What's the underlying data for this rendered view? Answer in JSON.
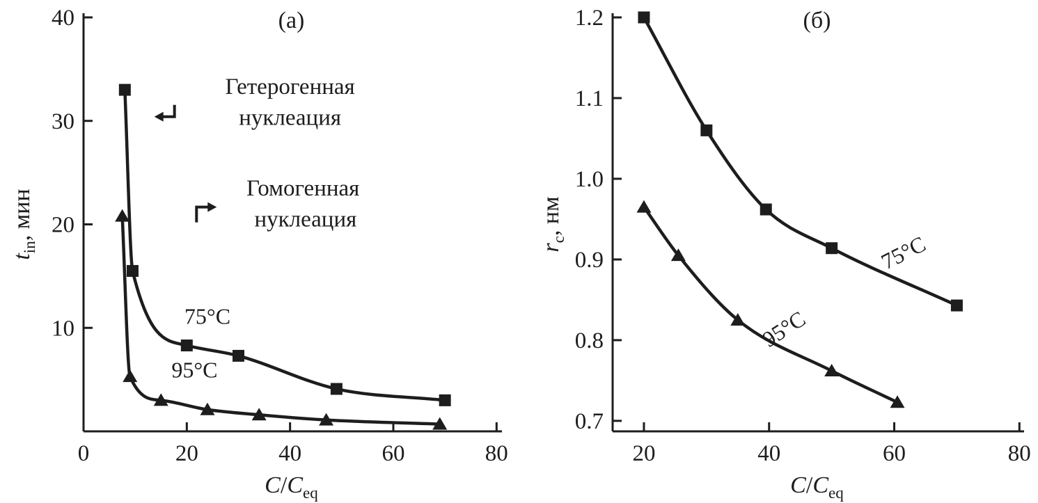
{
  "colors": {
    "ink": "#1d1d1d",
    "background": "#ffffff"
  },
  "chart_data": [
    {
      "type": "line",
      "panel_label": "(а)",
      "xlabel_parts": [
        {
          "t": "C",
          "i": true
        },
        {
          "t": "/"
        },
        {
          "t": "C",
          "i": true
        },
        {
          "t": "eq",
          "sub": true
        }
      ],
      "ylabel_parts": [
        {
          "t": "t",
          "i": true
        },
        {
          "t": "in",
          "sub": true
        },
        {
          "t": ", мин"
        }
      ],
      "xlim": [
        0,
        80.5
      ],
      "ylim": [
        0,
        40
      ],
      "grid": false,
      "xticks": [
        {
          "v": 0,
          "label": "0"
        },
        {
          "v": 20,
          "label": "20"
        },
        {
          "v": 40,
          "label": "40"
        },
        {
          "v": 60,
          "label": "60"
        },
        {
          "v": 80,
          "label": "80"
        }
      ],
      "yticks": [
        {
          "v": 10,
          "label": "10"
        },
        {
          "v": 20,
          "label": "20"
        },
        {
          "v": 30,
          "label": "30"
        },
        {
          "v": 40,
          "label": "40"
        }
      ],
      "series": [
        {
          "name": "heterogeneous-75C",
          "marker": "square",
          "label": "75°C",
          "label_pos": [
            24,
            10.4
          ],
          "label_rotation": 0,
          "points": [
            [
              8,
              33
            ],
            [
              9.5,
              15.5
            ],
            [
              20,
              8.3
            ],
            [
              30,
              7.3
            ],
            [
              49,
              4.1
            ],
            [
              70,
              3.0
            ]
          ]
        },
        {
          "name": "homogeneous-95C",
          "marker": "triangle",
          "label": "95°C",
          "label_pos": [
            21.5,
            5.2
          ],
          "label_rotation": 0,
          "points": [
            [
              7.5,
              20.8
            ],
            [
              9,
              5.3
            ],
            [
              15,
              3.0
            ],
            [
              24,
              2.1
            ],
            [
              34,
              1.6
            ],
            [
              47,
              1.1
            ],
            [
              69,
              0.7
            ]
          ]
        }
      ],
      "annotations": [
        {
          "arrow": "down-left",
          "arrow_pos": [
            16,
            30.4
          ],
          "lines": [
            {
              "text": "Гетерогенная",
              "pos": [
                40,
                32.6
              ]
            },
            {
              "text": "нуклеация",
              "pos": [
                40,
                29.6
              ]
            }
          ]
        },
        {
          "arrow": "up-right",
          "arrow_pos": [
            23.5,
            21.2
          ],
          "lines": [
            {
              "text": "Гомогенная",
              "pos": [
                42.5,
                22.8
              ]
            },
            {
              "text": "нуклеация",
              "pos": [
                43,
                19.8
              ]
            }
          ]
        }
      ]
    },
    {
      "type": "line",
      "panel_label": "(б)",
      "xlabel_parts": [
        {
          "t": "C",
          "i": true
        },
        {
          "t": "/"
        },
        {
          "t": "C",
          "i": true
        },
        {
          "t": "eq",
          "sub": true
        }
      ],
      "ylabel_parts": [
        {
          "t": "r",
          "i": true
        },
        {
          "t": "c",
          "sub": true
        },
        {
          "t": ", нм"
        }
      ],
      "xlim": [
        15,
        80.3
      ],
      "ylim": [
        0.687,
        1.2
      ],
      "grid": false,
      "xticks": [
        {
          "v": 20,
          "label": "20"
        },
        {
          "v": 40,
          "label": "40"
        },
        {
          "v": 60,
          "label": "60"
        },
        {
          "v": 80,
          "label": "80"
        }
      ],
      "yticks": [
        {
          "v": 0.7,
          "label": "0.7"
        },
        {
          "v": 0.8,
          "label": "0.8"
        },
        {
          "v": 0.9,
          "label": "0.9"
        },
        {
          "v": 1.0,
          "label": "1.0"
        },
        {
          "v": 1.1,
          "label": "1.1"
        },
        {
          "v": 1.2,
          "label": "1.2"
        }
      ],
      "series": [
        {
          "name": "critical-radius-75C",
          "marker": "square",
          "label": "75°C",
          "label_pos": [
            62,
            0.9
          ],
          "label_rotation": -27,
          "points": [
            [
              20,
              1.2
            ],
            [
              30,
              1.06
            ],
            [
              39.5,
              0.962
            ],
            [
              50,
              0.914
            ],
            [
              70,
              0.843
            ]
          ]
        },
        {
          "name": "critical-radius-95C",
          "marker": "triangle",
          "label": "95°C",
          "label_pos": [
            43,
            0.806
          ],
          "label_rotation": -33,
          "points": [
            [
              20,
              0.965
            ],
            [
              25.5,
              0.905
            ],
            [
              35,
              0.825
            ],
            [
              50,
              0.762
            ],
            [
              60.5,
              0.723
            ]
          ]
        }
      ],
      "annotations": []
    }
  ]
}
